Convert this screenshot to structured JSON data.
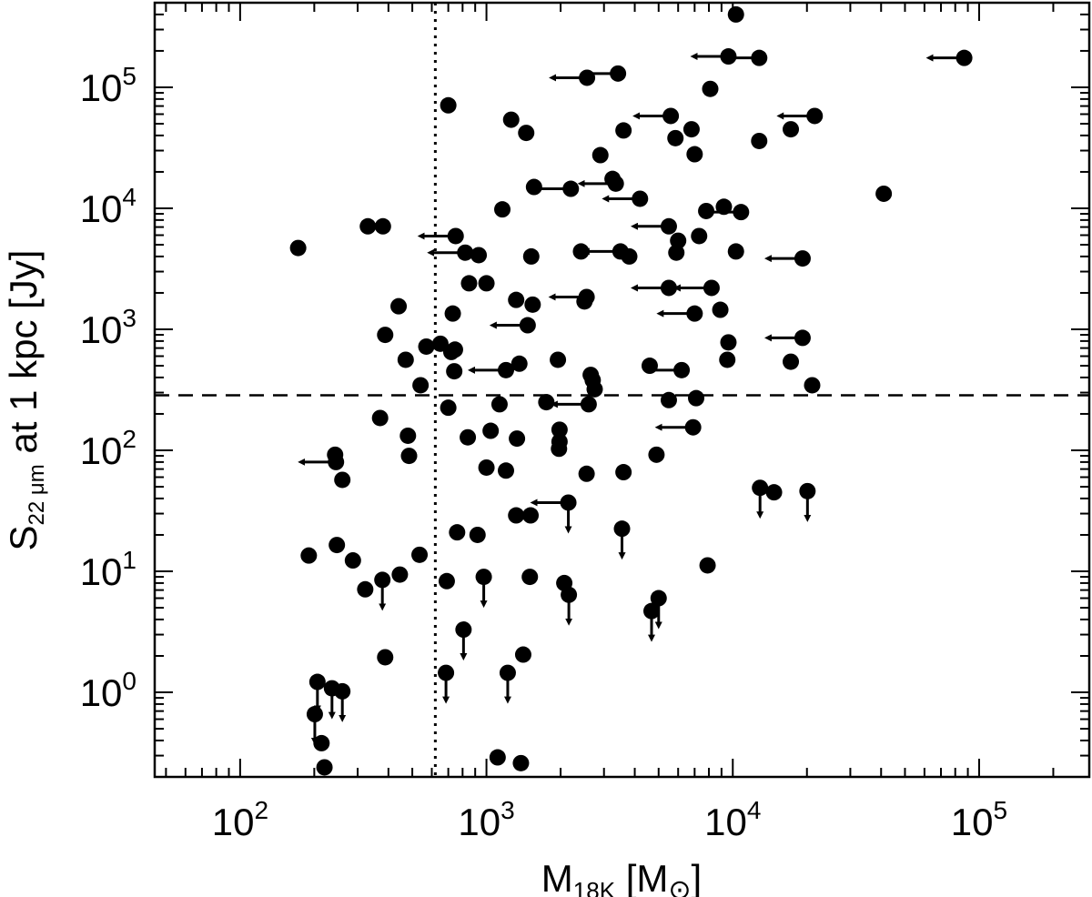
{
  "chart_data": {
    "type": "scatter",
    "xscale": "log",
    "yscale": "log",
    "xlim": [
      45,
      280000
    ],
    "ylim": [
      0.2,
      500000
    ],
    "xlabel": {
      "main": "M",
      "sub": "18K",
      "rest": " [M",
      "sym": "⊙",
      "close": "]"
    },
    "ylabel": {
      "main": "S",
      "sub": "22 μm",
      "rest": " at 1 kpc [Jy]"
    },
    "xtick_labels": [
      {
        "value": 100,
        "base": "10",
        "exp": "2"
      },
      {
        "value": 1000,
        "base": "10",
        "exp": "3"
      },
      {
        "value": 10000,
        "base": "10",
        "exp": "4"
      },
      {
        "value": 100000,
        "base": "10",
        "exp": "5"
      }
    ],
    "ytick_labels": [
      {
        "value": 1,
        "base": "10",
        "exp": "0"
      },
      {
        "value": 10,
        "base": "10",
        "exp": "1"
      },
      {
        "value": 100,
        "base": "10",
        "exp": "2"
      },
      {
        "value": 1000,
        "base": "10",
        "exp": "3"
      },
      {
        "value": 10000,
        "base": "10",
        "exp": "4"
      },
      {
        "value": 100000,
        "base": "10",
        "exp": "5"
      }
    ],
    "reference_lines": {
      "vertical_dotted_x": 620,
      "horizontal_dashed_y": 285
    },
    "points": [
      {
        "x": 10300,
        "y": 400000
      },
      {
        "x": 9600,
        "y": 180000,
        "xul": true
      },
      {
        "x": 12800,
        "y": 175000,
        "xul": true
      },
      {
        "x": 87000,
        "y": 175000,
        "xul": true
      },
      {
        "x": 3420,
        "y": 130000,
        "xul": true
      },
      {
        "x": 2560,
        "y": 120000,
        "xul": true
      },
      {
        "x": 8100,
        "y": 97000
      },
      {
        "x": 700,
        "y": 71000
      },
      {
        "x": 5600,
        "y": 58000,
        "xul": true
      },
      {
        "x": 21500,
        "y": 58000,
        "xul": true
      },
      {
        "x": 1260,
        "y": 54000
      },
      {
        "x": 6800,
        "y": 45000
      },
      {
        "x": 17200,
        "y": 45000
      },
      {
        "x": 1450,
        "y": 42000
      },
      {
        "x": 3600,
        "y": 44000
      },
      {
        "x": 5850,
        "y": 38000
      },
      {
        "x": 12800,
        "y": 36000
      },
      {
        "x": 2900,
        "y": 27500
      },
      {
        "x": 7000,
        "y": 28000
      },
      {
        "x": 3250,
        "y": 17500
      },
      {
        "x": 3350,
        "y": 16000,
        "xul": true
      },
      {
        "x": 1560,
        "y": 15000
      },
      {
        "x": 2200,
        "y": 14500,
        "xul": true
      },
      {
        "x": 4200,
        "y": 12000,
        "xul": true
      },
      {
        "x": 41000,
        "y": 13200
      },
      {
        "x": 1160,
        "y": 9800
      },
      {
        "x": 9200,
        "y": 10300
      },
      {
        "x": 7800,
        "y": 9500
      },
      {
        "x": 10800,
        "y": 9300,
        "xul": true
      },
      {
        "x": 330,
        "y": 7100
      },
      {
        "x": 380,
        "y": 7100
      },
      {
        "x": 5500,
        "y": 7100,
        "xul": true
      },
      {
        "x": 750,
        "y": 5900,
        "xul": true
      },
      {
        "x": 7300,
        "y": 5900
      },
      {
        "x": 6000,
        "y": 5400
      },
      {
        "x": 172,
        "y": 4700
      },
      {
        "x": 2420,
        "y": 4400
      },
      {
        "x": 3500,
        "y": 4400,
        "xul": true
      },
      {
        "x": 820,
        "y": 4300,
        "xul": true
      },
      {
        "x": 5900,
        "y": 4300
      },
      {
        "x": 10300,
        "y": 4400
      },
      {
        "x": 930,
        "y": 4100
      },
      {
        "x": 1520,
        "y": 4000
      },
      {
        "x": 3800,
        "y": 4000
      },
      {
        "x": 19200,
        "y": 3850,
        "xul": true
      },
      {
        "x": 850,
        "y": 2400
      },
      {
        "x": 1000,
        "y": 2400
      },
      {
        "x": 5500,
        "y": 2200,
        "xul": true
      },
      {
        "x": 8200,
        "y": 2200,
        "xul": true
      },
      {
        "x": 2550,
        "y": 1850,
        "xul": true
      },
      {
        "x": 1320,
        "y": 1750
      },
      {
        "x": 1540,
        "y": 1600
      },
      {
        "x": 440,
        "y": 1550
      },
      {
        "x": 2500,
        "y": 1700
      },
      {
        "x": 8900,
        "y": 1450
      },
      {
        "x": 730,
        "y": 1350
      },
      {
        "x": 7000,
        "y": 1350,
        "xul": true
      },
      {
        "x": 1470,
        "y": 1080,
        "xul": true
      },
      {
        "x": 388,
        "y": 900
      },
      {
        "x": 19200,
        "y": 850,
        "xul": true
      },
      {
        "x": 9600,
        "y": 780
      },
      {
        "x": 570,
        "y": 720
      },
      {
        "x": 650,
        "y": 760
      },
      {
        "x": 720,
        "y": 650
      },
      {
        "x": 745,
        "y": 680
      },
      {
        "x": 470,
        "y": 560
      },
      {
        "x": 1360,
        "y": 520
      },
      {
        "x": 1950,
        "y": 560
      },
      {
        "x": 9500,
        "y": 560
      },
      {
        "x": 17200,
        "y": 540
      },
      {
        "x": 4600,
        "y": 500
      },
      {
        "x": 1200,
        "y": 460,
        "xul": true
      },
      {
        "x": 740,
        "y": 450
      },
      {
        "x": 6200,
        "y": 460,
        "xul": true
      },
      {
        "x": 2650,
        "y": 420
      },
      {
        "x": 2700,
        "y": 380
      },
      {
        "x": 2750,
        "y": 320
      },
      {
        "x": 540,
        "y": 345
      },
      {
        "x": 21000,
        "y": 345
      },
      {
        "x": 700,
        "y": 225
      },
      {
        "x": 1130,
        "y": 240
      },
      {
        "x": 1750,
        "y": 250
      },
      {
        "x": 2600,
        "y": 240,
        "xul": true
      },
      {
        "x": 5500,
        "y": 260
      },
      {
        "x": 7100,
        "y": 270
      },
      {
        "x": 370,
        "y": 185
      },
      {
        "x": 1980,
        "y": 148
      },
      {
        "x": 6900,
        "y": 155,
        "xul": true
      },
      {
        "x": 480,
        "y": 132
      },
      {
        "x": 1040,
        "y": 145
      },
      {
        "x": 840,
        "y": 128
      },
      {
        "x": 1330,
        "y": 125
      },
      {
        "x": 1980,
        "y": 118
      },
      {
        "x": 1970,
        "y": 103
      },
      {
        "x": 243,
        "y": 92
      },
      {
        "x": 485,
        "y": 90
      },
      {
        "x": 4900,
        "y": 92
      },
      {
        "x": 245,
        "y": 80,
        "xul": true
      },
      {
        "x": 1000,
        "y": 72
      },
      {
        "x": 1200,
        "y": 68
      },
      {
        "x": 2550,
        "y": 64
      },
      {
        "x": 3600,
        "y": 66
      },
      {
        "x": 260,
        "y": 57
      },
      {
        "x": 12900,
        "y": 49,
        "yul": true
      },
      {
        "x": 14700,
        "y": 45
      },
      {
        "x": 20100,
        "y": 46,
        "yul": true
      },
      {
        "x": 2150,
        "y": 37,
        "xul": true,
        "yul": true
      },
      {
        "x": 1320,
        "y": 29
      },
      {
        "x": 1510,
        "y": 29
      },
      {
        "x": 760,
        "y": 21
      },
      {
        "x": 920,
        "y": 20
      },
      {
        "x": 3550,
        "y": 22.5,
        "yul": true
      },
      {
        "x": 247,
        "y": 16.5
      },
      {
        "x": 190,
        "y": 13.5
      },
      {
        "x": 535,
        "y": 13.7
      },
      {
        "x": 287,
        "y": 12.3
      },
      {
        "x": 7900,
        "y": 11.2
      },
      {
        "x": 445,
        "y": 9.4
      },
      {
        "x": 378,
        "y": 8.5,
        "yul": true
      },
      {
        "x": 975,
        "y": 9,
        "yul": true
      },
      {
        "x": 1500,
        "y": 9
      },
      {
        "x": 690,
        "y": 8.3
      },
      {
        "x": 2070,
        "y": 8
      },
      {
        "x": 322,
        "y": 7.1
      },
      {
        "x": 2160,
        "y": 6.4,
        "yul": true
      },
      {
        "x": 5000,
        "y": 6,
        "yul": true
      },
      {
        "x": 4680,
        "y": 4.7,
        "yul": true
      },
      {
        "x": 807,
        "y": 3.3,
        "yul": true
      },
      {
        "x": 1410,
        "y": 2.05
      },
      {
        "x": 388,
        "y": 1.95
      },
      {
        "x": 685,
        "y": 1.45,
        "yul": true
      },
      {
        "x": 1220,
        "y": 1.45,
        "yul": true
      },
      {
        "x": 206,
        "y": 1.22,
        "yul": true
      },
      {
        "x": 236,
        "y": 1.08,
        "yul": true
      },
      {
        "x": 260,
        "y": 1.02,
        "yul": true
      },
      {
        "x": 201,
        "y": 0.66,
        "yul": true
      },
      {
        "x": 214,
        "y": 0.38
      },
      {
        "x": 1110,
        "y": 0.29
      },
      {
        "x": 1380,
        "y": 0.26
      },
      {
        "x": 220,
        "y": 0.24
      }
    ]
  }
}
